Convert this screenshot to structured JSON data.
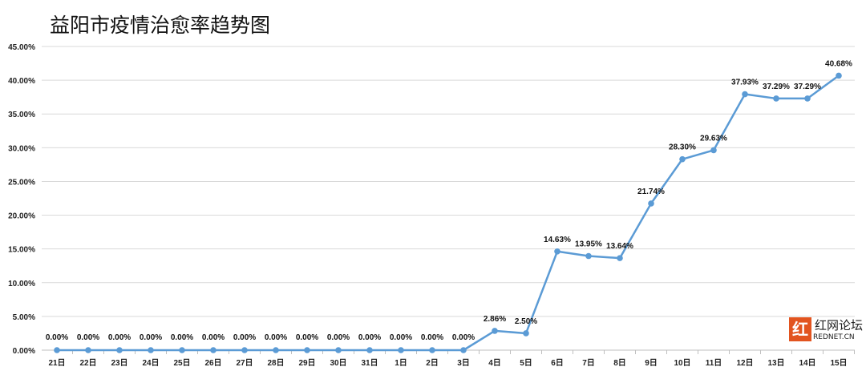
{
  "chart_data": {
    "type": "line",
    "title": "益阳市疫情治愈率趋势图",
    "categories": [
      "21日",
      "22日",
      "23日",
      "24日",
      "25日",
      "26日",
      "27日",
      "28日",
      "29日",
      "30日",
      "31日",
      "1日",
      "2日",
      "3日",
      "4日",
      "5日",
      "6日",
      "7日",
      "8日",
      "9日",
      "10日",
      "11日",
      "12日",
      "13日",
      "14日",
      "15日"
    ],
    "values": [
      0,
      0,
      0,
      0,
      0,
      0,
      0,
      0,
      0,
      0,
      0,
      0,
      0,
      0,
      2.86,
      2.5,
      14.63,
      13.95,
      13.64,
      21.74,
      28.3,
      29.63,
      37.93,
      37.29,
      37.29,
      40.68
    ],
    "data_labels": [
      "0.00%",
      "0.00%",
      "0.00%",
      "0.00%",
      "0.00%",
      "0.00%",
      "0.00%",
      "0.00%",
      "0.00%",
      "0.00%",
      "0.00%",
      "0.00%",
      "0.00%",
      "0.00%",
      "2.86%",
      "2.50%",
      "14.63%",
      "13.95%",
      "13.64%",
      "21.74%",
      "28.30%",
      "29.63%",
      "37.93%",
      "37.29%",
      "37.29%",
      "40.68%"
    ],
    "yticks": [
      "0.00%",
      "5.00%",
      "10.00%",
      "15.00%",
      "20.00%",
      "25.00%",
      "30.00%",
      "35.00%",
      "40.00%",
      "45.00%"
    ],
    "ylim": [
      0,
      45
    ],
    "grid": true,
    "line_color": "#5b9bd5"
  },
  "watermark": {
    "logo": "红",
    "text": "红网论坛",
    "site": "REDNET.CN"
  }
}
